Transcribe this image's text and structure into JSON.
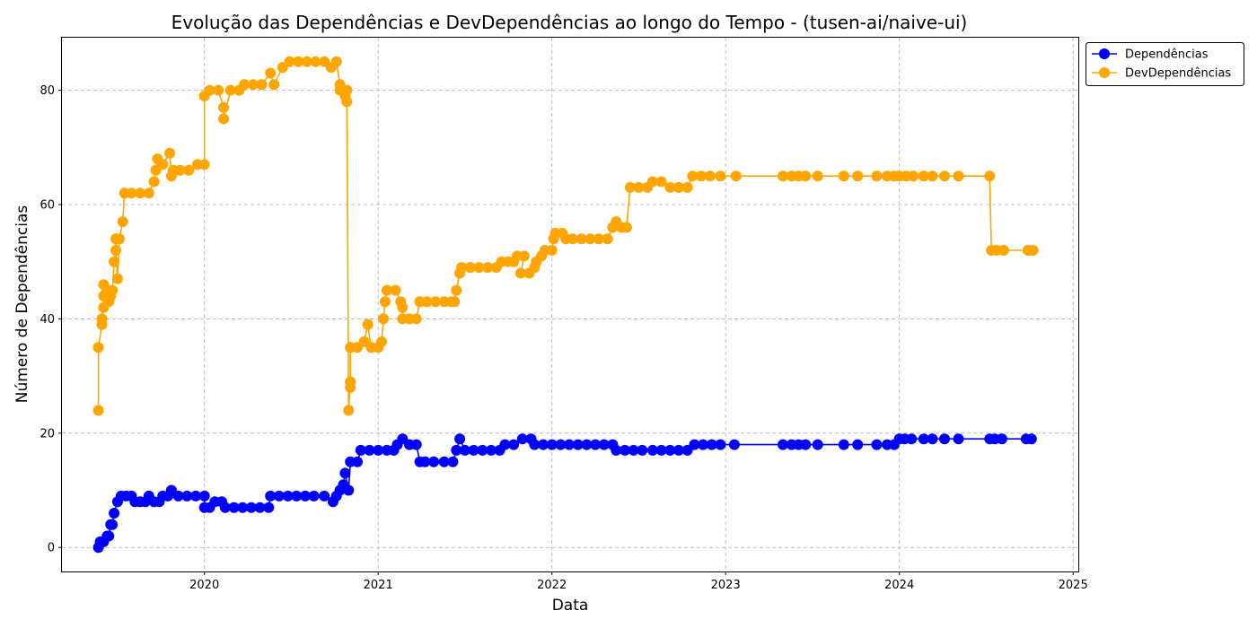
{
  "chart_data": {
    "type": "line",
    "title": "Evolução das Dependências e DevDependências ao longo do Tempo - (tusen-ai/naive-ui)",
    "xlabel": "Data",
    "ylabel": "Número de Dependências",
    "xlim": [
      2019.18,
      2025.03
    ],
    "ylim": [
      -4.2,
      89.2
    ],
    "x_ticks": [
      2020,
      2021,
      2022,
      2023,
      2024,
      2025
    ],
    "y_ticks": [
      0,
      20,
      40,
      60,
      80
    ],
    "grid": true,
    "legend_position": "upper right, outside plot",
    "series": [
      {
        "name": "Dependências",
        "color": "#0000ff",
        "marker": "circle",
        "points": [
          [
            2019.39,
            0
          ],
          [
            2019.4,
            1
          ],
          [
            2019.42,
            1
          ],
          [
            2019.44,
            2
          ],
          [
            2019.45,
            2
          ],
          [
            2019.46,
            4
          ],
          [
            2019.47,
            4
          ],
          [
            2019.48,
            6
          ],
          [
            2019.5,
            8
          ],
          [
            2019.52,
            9
          ],
          [
            2019.55,
            9
          ],
          [
            2019.58,
            9
          ],
          [
            2019.6,
            8
          ],
          [
            2019.63,
            8
          ],
          [
            2019.66,
            8
          ],
          [
            2019.68,
            9
          ],
          [
            2019.71,
            8
          ],
          [
            2019.74,
            8
          ],
          [
            2019.76,
            9
          ],
          [
            2019.79,
            9
          ],
          [
            2019.81,
            10
          ],
          [
            2019.85,
            9
          ],
          [
            2019.9,
            9
          ],
          [
            2019.95,
            9
          ],
          [
            2020.0,
            9
          ],
          [
            2020.0,
            7
          ],
          [
            2020.03,
            7
          ],
          [
            2020.06,
            8
          ],
          [
            2020.1,
            8
          ],
          [
            2020.12,
            7
          ],
          [
            2020.17,
            7
          ],
          [
            2020.22,
            7
          ],
          [
            2020.27,
            7
          ],
          [
            2020.32,
            7
          ],
          [
            2020.37,
            7
          ],
          [
            2020.38,
            9
          ],
          [
            2020.43,
            9
          ],
          [
            2020.48,
            9
          ],
          [
            2020.53,
            9
          ],
          [
            2020.58,
            9
          ],
          [
            2020.63,
            9
          ],
          [
            2020.69,
            9
          ],
          [
            2020.74,
            8
          ],
          [
            2020.76,
            9
          ],
          [
            2020.78,
            10
          ],
          [
            2020.8,
            11
          ],
          [
            2020.81,
            13
          ],
          [
            2020.83,
            10
          ],
          [
            2020.84,
            15
          ],
          [
            2020.88,
            15
          ],
          [
            2020.9,
            17
          ],
          [
            2020.95,
            17
          ],
          [
            2021.0,
            17
          ],
          [
            2021.05,
            17
          ],
          [
            2021.09,
            17
          ],
          [
            2021.11,
            18
          ],
          [
            2021.14,
            19
          ],
          [
            2021.18,
            18
          ],
          [
            2021.22,
            18
          ],
          [
            2021.24,
            15
          ],
          [
            2021.27,
            15
          ],
          [
            2021.32,
            15
          ],
          [
            2021.38,
            15
          ],
          [
            2021.43,
            15
          ],
          [
            2021.45,
            17
          ],
          [
            2021.47,
            19
          ],
          [
            2021.5,
            17
          ],
          [
            2021.55,
            17
          ],
          [
            2021.6,
            17
          ],
          [
            2021.65,
            17
          ],
          [
            2021.7,
            17
          ],
          [
            2021.73,
            18
          ],
          [
            2021.78,
            18
          ],
          [
            2021.83,
            19
          ],
          [
            2021.88,
            19
          ],
          [
            2021.9,
            18
          ],
          [
            2021.95,
            18
          ],
          [
            2022.0,
            18
          ],
          [
            2022.05,
            18
          ],
          [
            2022.1,
            18
          ],
          [
            2022.15,
            18
          ],
          [
            2022.2,
            18
          ],
          [
            2022.25,
            18
          ],
          [
            2022.3,
            18
          ],
          [
            2022.35,
            18
          ],
          [
            2022.37,
            17
          ],
          [
            2022.42,
            17
          ],
          [
            2022.47,
            17
          ],
          [
            2022.52,
            17
          ],
          [
            2022.58,
            17
          ],
          [
            2022.63,
            17
          ],
          [
            2022.68,
            17
          ],
          [
            2022.73,
            17
          ],
          [
            2022.78,
            17
          ],
          [
            2022.82,
            18
          ],
          [
            2022.87,
            18
          ],
          [
            2022.92,
            18
          ],
          [
            2022.97,
            18
          ],
          [
            2023.05,
            18
          ],
          [
            2023.33,
            18
          ],
          [
            2023.38,
            18
          ],
          [
            2023.42,
            18
          ],
          [
            2023.46,
            18
          ],
          [
            2023.53,
            18
          ],
          [
            2023.68,
            18
          ],
          [
            2023.76,
            18
          ],
          [
            2023.87,
            18
          ],
          [
            2023.93,
            18
          ],
          [
            2023.97,
            18
          ],
          [
            2024.0,
            19
          ],
          [
            2024.03,
            19
          ],
          [
            2024.07,
            19
          ],
          [
            2024.14,
            19
          ],
          [
            2024.19,
            19
          ],
          [
            2024.26,
            19
          ],
          [
            2024.34,
            19
          ],
          [
            2024.52,
            19
          ],
          [
            2024.55,
            19
          ],
          [
            2024.59,
            19
          ],
          [
            2024.73,
            19
          ],
          [
            2024.76,
            19
          ]
        ]
      },
      {
        "name": "DevDependências",
        "color": "#ffa500",
        "marker": "circle",
        "points": [
          [
            2019.39,
            24
          ],
          [
            2019.39,
            35
          ],
          [
            2019.41,
            39
          ],
          [
            2019.41,
            40
          ],
          [
            2019.42,
            42
          ],
          [
            2019.42,
            44
          ],
          [
            2019.42,
            46
          ],
          [
            2019.44,
            45
          ],
          [
            2019.45,
            43
          ],
          [
            2019.46,
            44
          ],
          [
            2019.47,
            45
          ],
          [
            2019.48,
            50
          ],
          [
            2019.49,
            54
          ],
          [
            2019.49,
            52
          ],
          [
            2019.5,
            47
          ],
          [
            2019.51,
            54
          ],
          [
            2019.53,
            57
          ],
          [
            2019.54,
            62
          ],
          [
            2019.58,
            62
          ],
          [
            2019.63,
            62
          ],
          [
            2019.68,
            62
          ],
          [
            2019.71,
            64
          ],
          [
            2019.72,
            66
          ],
          [
            2019.73,
            68
          ],
          [
            2019.76,
            67
          ],
          [
            2019.8,
            69
          ],
          [
            2019.81,
            65
          ],
          [
            2019.82,
            66
          ],
          [
            2019.86,
            66
          ],
          [
            2019.91,
            66
          ],
          [
            2019.96,
            67
          ],
          [
            2020.0,
            67
          ],
          [
            2020.0,
            79
          ],
          [
            2020.03,
            80
          ],
          [
            2020.08,
            80
          ],
          [
            2020.11,
            77
          ],
          [
            2020.11,
            75
          ],
          [
            2020.15,
            80
          ],
          [
            2020.2,
            80
          ],
          [
            2020.23,
            81
          ],
          [
            2020.28,
            81
          ],
          [
            2020.33,
            81
          ],
          [
            2020.38,
            83
          ],
          [
            2020.4,
            81
          ],
          [
            2020.45,
            84
          ],
          [
            2020.49,
            85
          ],
          [
            2020.54,
            85
          ],
          [
            2020.59,
            85
          ],
          [
            2020.64,
            85
          ],
          [
            2020.69,
            85
          ],
          [
            2020.73,
            84
          ],
          [
            2020.76,
            85
          ],
          [
            2020.78,
            81
          ],
          [
            2020.78,
            80
          ],
          [
            2020.81,
            79
          ],
          [
            2020.82,
            78
          ],
          [
            2020.82,
            80
          ],
          [
            2020.83,
            24
          ],
          [
            2020.84,
            29
          ],
          [
            2020.84,
            28
          ],
          [
            2020.84,
            35
          ],
          [
            2020.88,
            35
          ],
          [
            2020.92,
            36
          ],
          [
            2020.94,
            39
          ],
          [
            2020.96,
            35
          ],
          [
            2021.0,
            35
          ],
          [
            2021.02,
            36
          ],
          [
            2021.03,
            40
          ],
          [
            2021.04,
            43
          ],
          [
            2021.05,
            45
          ],
          [
            2021.1,
            45
          ],
          [
            2021.13,
            43
          ],
          [
            2021.14,
            42
          ],
          [
            2021.14,
            40
          ],
          [
            2021.18,
            40
          ],
          [
            2021.22,
            40
          ],
          [
            2021.24,
            43
          ],
          [
            2021.28,
            43
          ],
          [
            2021.33,
            43
          ],
          [
            2021.38,
            43
          ],
          [
            2021.42,
            43
          ],
          [
            2021.44,
            43
          ],
          [
            2021.45,
            45
          ],
          [
            2021.47,
            48
          ],
          [
            2021.48,
            49
          ],
          [
            2021.53,
            49
          ],
          [
            2021.58,
            49
          ],
          [
            2021.63,
            49
          ],
          [
            2021.68,
            49
          ],
          [
            2021.71,
            50
          ],
          [
            2021.75,
            50
          ],
          [
            2021.78,
            50
          ],
          [
            2021.8,
            51
          ],
          [
            2021.84,
            51
          ],
          [
            2021.82,
            48
          ],
          [
            2021.87,
            48
          ],
          [
            2021.9,
            49
          ],
          [
            2021.91,
            50
          ],
          [
            2021.94,
            51
          ],
          [
            2021.96,
            52
          ],
          [
            2022.0,
            52
          ],
          [
            2022.01,
            54
          ],
          [
            2022.02,
            55
          ],
          [
            2022.06,
            55
          ],
          [
            2022.08,
            54
          ],
          [
            2022.12,
            54
          ],
          [
            2022.17,
            54
          ],
          [
            2022.22,
            54
          ],
          [
            2022.27,
            54
          ],
          [
            2022.32,
            54
          ],
          [
            2022.35,
            56
          ],
          [
            2022.37,
            57
          ],
          [
            2022.4,
            56
          ],
          [
            2022.43,
            56
          ],
          [
            2022.45,
            63
          ],
          [
            2022.5,
            63
          ],
          [
            2022.55,
            63
          ],
          [
            2022.58,
            64
          ],
          [
            2022.63,
            64
          ],
          [
            2022.68,
            63
          ],
          [
            2022.73,
            63
          ],
          [
            2022.78,
            63
          ],
          [
            2022.81,
            65
          ],
          [
            2022.86,
            65
          ],
          [
            2022.91,
            65
          ],
          [
            2022.97,
            65
          ],
          [
            2023.06,
            65
          ],
          [
            2023.33,
            65
          ],
          [
            2023.38,
            65
          ],
          [
            2023.42,
            65
          ],
          [
            2023.46,
            65
          ],
          [
            2023.53,
            65
          ],
          [
            2023.68,
            65
          ],
          [
            2023.76,
            65
          ],
          [
            2023.87,
            65
          ],
          [
            2023.93,
            65
          ],
          [
            2023.97,
            65
          ],
          [
            2024.0,
            65
          ],
          [
            2024.04,
            65
          ],
          [
            2024.08,
            65
          ],
          [
            2024.14,
            65
          ],
          [
            2024.19,
            65
          ],
          [
            2024.26,
            65
          ],
          [
            2024.34,
            65
          ],
          [
            2024.52,
            65
          ],
          [
            2024.53,
            52
          ],
          [
            2024.56,
            52
          ],
          [
            2024.6,
            52
          ],
          [
            2024.74,
            52
          ],
          [
            2024.77,
            52
          ]
        ]
      }
    ]
  }
}
